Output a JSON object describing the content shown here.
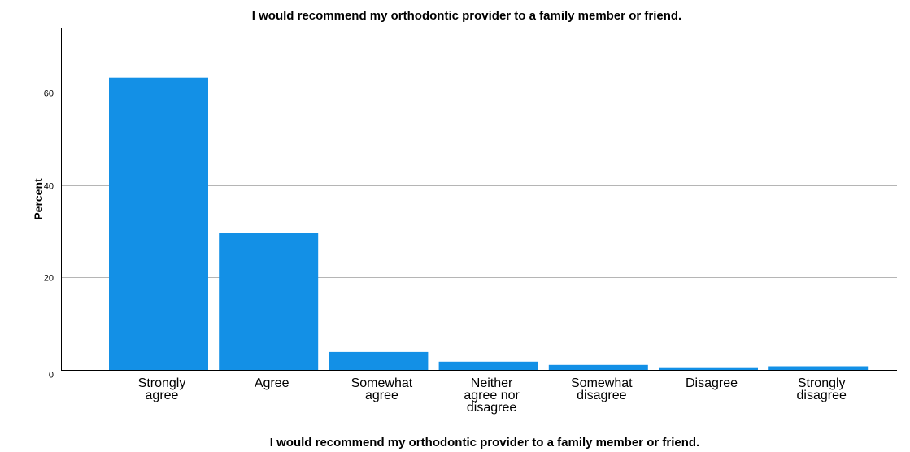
{
  "chart_data": {
    "type": "bar",
    "title": "I would recommend my orthodontic provider to a family member or friend.",
    "xlabel": "I would recommend my orthodontic provider to a family member or friend.",
    "ylabel": "Percent",
    "ylim": [
      0,
      74
    ],
    "yticks": [
      0,
      20,
      40,
      60
    ],
    "grid": true,
    "categories": [
      [
        "Strongly",
        "agree"
      ],
      [
        "Agree"
      ],
      [
        "Somewhat",
        "agree"
      ],
      [
        "Neither",
        "agree nor",
        "disagree"
      ],
      [
        "Somewhat",
        "disagree"
      ],
      [
        "Disagree"
      ],
      [
        "Strongly",
        "disagree"
      ]
    ],
    "values": [
      63.3,
      29.7,
      3.9,
      1.8,
      1.1,
      0.4,
      0.8
    ],
    "bar_color": "#1390e6"
  }
}
